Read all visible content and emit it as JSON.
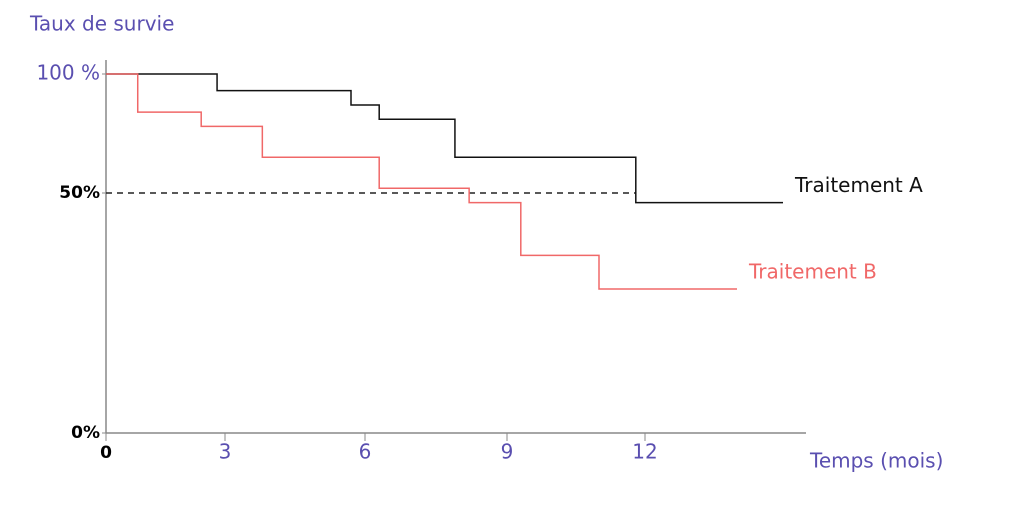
{
  "chart_data": {
    "type": "step",
    "title": "Taux de survie",
    "x_label": "Temps (mois)",
    "xlim": [
      0,
      15.5
    ],
    "xticks": [
      0,
      3,
      6,
      9,
      12
    ],
    "ylim": [
      0,
      100
    ],
    "yticks": [
      {
        "value": 100,
        "label": "100 %"
      },
      {
        "value": 50,
        "label": "50%"
      },
      {
        "value": 0,
        "label": "0%"
      }
    ],
    "series": [
      {
        "name": "Traitement A",
        "color": "#111111",
        "x": [
          0,
          2.8,
          5.7,
          6.3,
          7.9,
          11.8,
          15
        ],
        "values": [
          100,
          93,
          87,
          81,
          65,
          48,
          48
        ]
      },
      {
        "name": "Traitement B",
        "color": "#f06868",
        "x": [
          0,
          0.8,
          2.4,
          3.8,
          6.3,
          8.2,
          9.3,
          11.0,
          14.0
        ],
        "values": [
          100,
          84,
          78,
          65,
          52,
          48,
          37,
          30,
          30
        ]
      }
    ]
  }
}
